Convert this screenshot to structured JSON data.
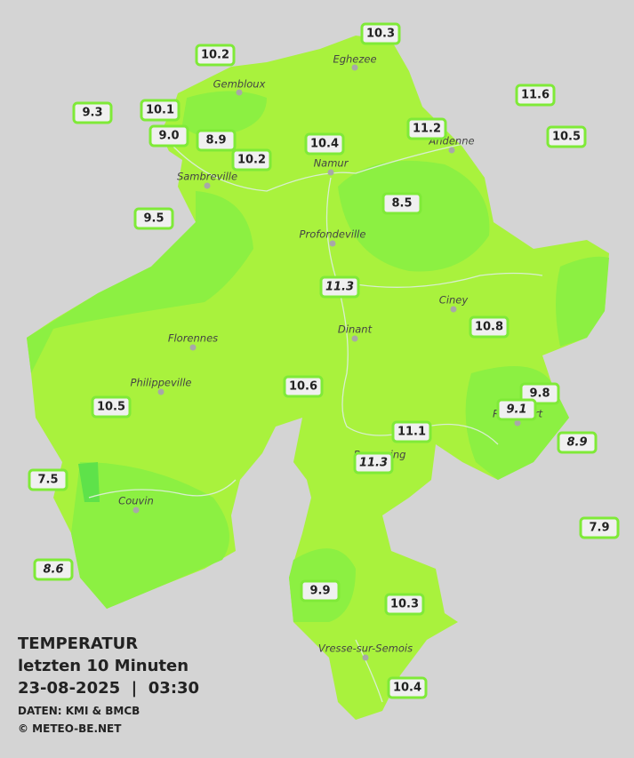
{
  "stations": [
    {
      "label": "10.3"
    },
    {
      "label": "10.2"
    },
    {
      "label": "9.3"
    },
    {
      "label": "10.1"
    },
    {
      "label": "9.0"
    },
    {
      "label": "8.9"
    },
    {
      "label": "10.2"
    },
    {
      "label": "10.4"
    },
    {
      "label": "11.2"
    },
    {
      "label": "11.6"
    },
    {
      "label": "10.5"
    },
    {
      "label": "8.5"
    },
    {
      "label": "9.5"
    },
    {
      "label": "11.3"
    },
    {
      "label": "10.8"
    },
    {
      "label": "10.6"
    },
    {
      "label": "10.5"
    },
    {
      "label": "9.8"
    },
    {
      "label": "9.1"
    },
    {
      "label": "8.9"
    },
    {
      "label": "11.1"
    },
    {
      "label": "11.3"
    },
    {
      "label": "7.5"
    },
    {
      "label": "7.9"
    },
    {
      "label": "8.6"
    },
    {
      "label": "9.9"
    },
    {
      "label": "10.3"
    },
    {
      "label": "10.4"
    }
  ],
  "cities": [
    "Eghezee",
    "Gembloux",
    "Andenne",
    "Namur",
    "Sambreville",
    "Profondeville",
    "Ciney",
    "Dinant",
    "Florennes",
    "Philippeville",
    "Rochefort",
    "Beauraing",
    "Couvin",
    "Vresse-sur-Semois"
  ],
  "info": {
    "title": "TEMPERATUR",
    "subtitle": "letzten 10 Minuten",
    "datetime": "23-08-2025  |  03:30",
    "source": "DATEN: KMI & BMCB",
    "copyright": "© METEO-BE.NET"
  }
}
